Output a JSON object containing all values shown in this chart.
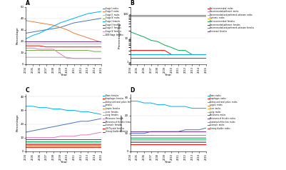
{
  "years": [
    2004,
    2005,
    2006,
    2007,
    2008,
    2009,
    2010,
    2011,
    2012,
    2013,
    2014,
    2015
  ],
  "panel_A": {
    "title": "A",
    "ylabel": "Percentage",
    "xlabel": "Year",
    "series": [
      {
        "label": "Stage I: males",
        "color": "#4472c4",
        "data": [
          27,
          28,
          29,
          30,
          31,
          32,
          34,
          36,
          37,
          38,
          39,
          40
        ],
        "lw": 0.7
      },
      {
        "label": "Stage II: males",
        "color": "#ed7d31",
        "data": [
          38,
          37,
          36,
          35,
          34,
          32,
          30,
          27,
          25,
          23,
          21,
          19
        ],
        "lw": 0.7
      },
      {
        "label": "Stage III: males",
        "color": "#ffc000",
        "data": [
          18,
          18,
          18,
          18,
          18,
          18,
          18,
          18,
          18,
          18,
          18,
          18
        ],
        "lw": 0.7
      },
      {
        "label": "Stage IV: males",
        "color": "#70ad47",
        "data": [
          12,
          12,
          12,
          12,
          12,
          12,
          12,
          12,
          12,
          12,
          11,
          11
        ],
        "lw": 0.7
      },
      {
        "label": "Stage I: females",
        "color": "#00b0f0",
        "data": [
          22,
          25,
          27,
          30,
          33,
          36,
          38,
          40,
          42,
          44,
          45,
          46
        ],
        "lw": 0.7
      },
      {
        "label": "Stage II: females",
        "color": "#7030a0",
        "data": [
          20,
          20,
          20,
          20,
          20,
          20,
          20,
          20,
          20,
          20,
          20,
          20
        ],
        "lw": 0.7
      },
      {
        "label": "Stage III: females",
        "color": "#ff0000",
        "data": [
          16,
          16,
          16,
          15,
          15,
          15,
          15,
          15,
          15,
          15,
          15,
          15
        ],
        "lw": 0.7
      },
      {
        "label": "Stage IV: females",
        "color": "#e377c2",
        "data": [
          14,
          14,
          13,
          13,
          13,
          9,
          5,
          5,
          5,
          5,
          5,
          5
        ],
        "lw": 0.7
      },
      {
        "label": "NOS Stage: females",
        "color": "#a9a9a9",
        "data": [
          6,
          6,
          6,
          6,
          6,
          6,
          6,
          5,
          5,
          5,
          5,
          5
        ],
        "lw": 0.7
      }
    ],
    "ylim": [
      0,
      50
    ],
    "yticks": [
      0,
      10,
      20,
      30,
      40,
      50
    ]
  },
  "panel_B": {
    "title": "B",
    "ylabel": "Percentage (log)",
    "xlabel": "Year",
    "series": [
      {
        "label": "Not recommended: males",
        "color": "#ff0000",
        "data": [
          90,
          90,
          90,
          90,
          90,
          90,
          90,
          90,
          90,
          90,
          90,
          90
        ],
        "lw": 0.7
      },
      {
        "label": "Recommended-adherent: males",
        "color": "#e377c2",
        "data": [
          88,
          88,
          88,
          88,
          88,
          88,
          88,
          88,
          88,
          88,
          88,
          88
        ],
        "lw": 0.7
      },
      {
        "label": "Recommended and performed unknown: males",
        "color": "#a9a9a9",
        "data": [
          86,
          86,
          86,
          86,
          86,
          86,
          86,
          86,
          86,
          86,
          86,
          86
        ],
        "lw": 0.7
      },
      {
        "label": "Systemic: males",
        "color": "#ffc000",
        "data": [
          80,
          80,
          80,
          80,
          80,
          80,
          80,
          80,
          80,
          80,
          80,
          80
        ],
        "lw": 0.7
      },
      {
        "label": "Not recommended: females",
        "color": "#00b050",
        "data": [
          18,
          14,
          11,
          8,
          7,
          5,
          4,
          3,
          3,
          2,
          2,
          2
        ],
        "lw": 0.7
      },
      {
        "label": "Recommended-adherent: females",
        "color": "#ff0000",
        "data": [
          3,
          3,
          3,
          3,
          3,
          3,
          2,
          2,
          2,
          2,
          2,
          2
        ],
        "lw": 0.7
      },
      {
        "label": "Recommended and performed unknown: females",
        "color": "#00b0f0",
        "data": [
          2,
          2,
          2,
          2,
          2,
          2,
          2,
          2,
          2,
          2,
          2,
          2
        ],
        "lw": 0.7
      },
      {
        "label": "Peritoneal: females",
        "color": "#7030a0",
        "data": [
          1.5,
          1.5,
          1.5,
          1.5,
          1.5,
          1.5,
          1.5,
          1.5,
          1.5,
          1.5,
          1.5,
          1.5
        ],
        "lw": 0.7
      }
    ],
    "ylim": [
      0.8,
      200
    ],
    "yscale": "log",
    "yticks": [
      1,
      10,
      100
    ]
  },
  "panel_C": {
    "title": "C",
    "ylabel": "Percentage",
    "xlabel": "Year",
    "series": [
      {
        "label": "Brain: females",
        "color": "#00b0f0",
        "data": [
          33,
          33,
          32,
          32,
          31,
          31,
          30,
          30,
          29,
          29,
          28,
          27
        ],
        "lw": 0.7
      },
      {
        "label": "Esophagus: females",
        "color": "#ff0000",
        "data": [
          3,
          3,
          3,
          3,
          3,
          3,
          3,
          3,
          3,
          3,
          3,
          3
        ],
        "lw": 0.7
      },
      {
        "label": "Kidney and renal pelvis: females",
        "color": "#70ad47",
        "data": [
          7,
          7,
          7,
          7,
          7,
          7,
          7,
          7,
          7,
          7,
          7,
          7
        ],
        "lw": 0.7
      },
      {
        "label": "females",
        "color": "#4472c4",
        "data": [
          14,
          15,
          16,
          17,
          18,
          19,
          20,
          21,
          22,
          22,
          23,
          24
        ],
        "lw": 0.7
      },
      {
        "label": "Larynx: females",
        "color": "#ed7d31",
        "data": [
          4,
          4,
          4,
          4,
          4,
          4,
          4,
          4,
          4,
          4,
          4,
          4
        ],
        "lw": 0.7
      },
      {
        "label": "Liver: females",
        "color": "#ffc000",
        "data": [
          5,
          5,
          5,
          5,
          5,
          5,
          5,
          5,
          5,
          5,
          5,
          5
        ],
        "lw": 0.7
      },
      {
        "label": "Lung: females",
        "color": "#a9a9a9",
        "data": [
          6,
          6,
          6,
          6,
          6,
          6,
          6,
          6,
          6,
          6,
          6,
          6
        ],
        "lw": 0.7
      },
      {
        "label": "Melanoma: females",
        "color": "#e377c2",
        "data": [
          10,
          10,
          10,
          10,
          10,
          11,
          11,
          11,
          12,
          12,
          13,
          14
        ],
        "lw": 0.7
      },
      {
        "label": "Melanoma of the skin: females",
        "color": "#7030a0",
        "data": [
          9,
          9,
          9,
          9,
          9,
          9,
          9,
          9,
          9,
          9,
          9,
          9
        ],
        "lw": 0.7
      },
      {
        "label": "Stomach: females",
        "color": "#00b050",
        "data": [
          7,
          7,
          7,
          7,
          7,
          7,
          7,
          7,
          7,
          7,
          7,
          7
        ],
        "lw": 0.7
      },
      {
        "label": "GIS Thyroid: females",
        "color": "#ff0000",
        "data": [
          5,
          5,
          5,
          5,
          5,
          5,
          5,
          5,
          5,
          5,
          5,
          5
        ],
        "lw": 0.7
      },
      {
        "label": "Urinary bladder: females",
        "color": "#d62728",
        "data": [
          3,
          3,
          3,
          3,
          3,
          3,
          3,
          3,
          3,
          3,
          3,
          3
        ],
        "lw": 0.7
      }
    ],
    "ylim": [
      0,
      42
    ],
    "yticks": [
      0,
      10,
      20,
      30,
      40
    ]
  },
  "panel_D": {
    "title": "D",
    "ylabel": "Percentage",
    "xlabel": "Year",
    "series": [
      {
        "label": "Brain: males",
        "color": "#00b0f0",
        "data": [
          28,
          28,
          27,
          27,
          26,
          26,
          25,
          25,
          25,
          24,
          24,
          24
        ],
        "lw": 0.7
      },
      {
        "label": "Esophagus: males",
        "color": "#ff0000",
        "data": [
          4,
          4,
          4,
          4,
          4,
          4,
          4,
          4,
          4,
          4,
          4,
          4
        ],
        "lw": 0.7
      },
      {
        "label": "Kidney and renal pelvis: males",
        "color": "#70ad47",
        "data": [
          9,
          9,
          9,
          9,
          9,
          9,
          9,
          9,
          9,
          9,
          9,
          9
        ],
        "lw": 0.7
      },
      {
        "label": "Larynx: males",
        "color": "#ed7d31",
        "data": [
          6,
          6,
          6,
          6,
          6,
          6,
          6,
          6,
          6,
          6,
          6,
          6
        ],
        "lw": 0.7
      },
      {
        "label": "Liver: males",
        "color": "#ffc000",
        "data": [
          7,
          7,
          7,
          7,
          7,
          7,
          7,
          7,
          7,
          7,
          7,
          7
        ],
        "lw": 0.7
      },
      {
        "label": "Lung: males",
        "color": "#a9a9a9",
        "data": [
          8,
          8,
          8,
          8,
          8,
          8,
          8,
          8,
          8,
          8,
          8,
          8
        ],
        "lw": 0.7
      },
      {
        "label": "Melanoma: males",
        "color": "#4472c4",
        "data": [
          10,
          10,
          10,
          11,
          11,
          11,
          11,
          11,
          12,
          12,
          12,
          13
        ],
        "lw": 0.7
      },
      {
        "label": "Melanoma of the skin: males",
        "color": "#7030a0",
        "data": [
          11,
          11,
          11,
          11,
          11,
          11,
          11,
          11,
          11,
          11,
          11,
          11
        ],
        "lw": 0.7
      },
      {
        "label": "Statistical of the skin: males",
        "color": "#e377c2",
        "data": [
          5,
          5,
          5,
          5,
          5,
          5,
          5,
          5,
          5,
          5,
          5,
          5
        ],
        "lw": 0.7
      },
      {
        "label": "Stomach: males",
        "color": "#00b050",
        "data": [
          7,
          7,
          7,
          7,
          7,
          7,
          7,
          7,
          7,
          7,
          7,
          7
        ],
        "lw": 0.7
      },
      {
        "label": "Urinary bladder: males",
        "color": "#d62728",
        "data": [
          5,
          5,
          5,
          5,
          5,
          5,
          5,
          5,
          5,
          5,
          5,
          5
        ],
        "lw": 0.7
      }
    ],
    "ylim": [
      0,
      32
    ],
    "yticks": [
      0,
      10,
      20,
      30
    ]
  }
}
